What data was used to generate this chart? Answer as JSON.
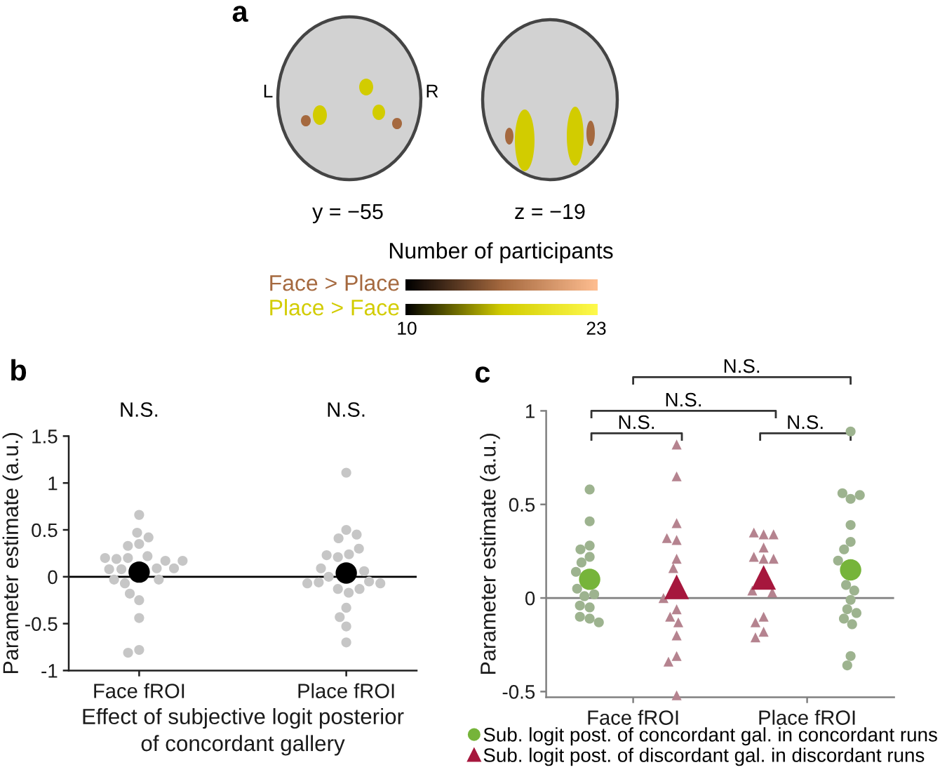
{
  "chart_data": [
    {
      "type": "other",
      "title": "a",
      "annotations": [
        "L",
        "R",
        "y = −55",
        "z = −19",
        "Number of participants",
        "10",
        "23"
      ],
      "categories": [
        "Face > Place",
        "Place > Face"
      ],
      "colors": [
        "#a5693f",
        "#d2cc00"
      ]
    },
    {
      "type": "scatter",
      "title": "b",
      "annotations": [
        "N.S.",
        "N.S."
      ],
      "xlabel": "Effect of subjective logit posterior\nof concordant gallery",
      "ylabel": "Parameter estimate (a.u.)",
      "categories": [
        "Face fROI",
        "Place fROI"
      ],
      "ylim": [
        -1,
        1.5
      ],
      "yticks": [
        -1,
        -0.5,
        0,
        0.5,
        1,
        1.5
      ],
      "marker": "circle",
      "ref_lines": [
        {
          "axis": "y",
          "value": 0,
          "color": "#000000"
        }
      ],
      "series": [
        {
          "color": "#c6c6c6",
          "x": [
            "Face fROI",
            "Face fROI",
            "Face fROI",
            "Face fROI",
            "Face fROI",
            "Face fROI",
            "Face fROI",
            "Face fROI",
            "Face fROI",
            "Face fROI",
            "Face fROI",
            "Face fROI",
            "Face fROI",
            "Face fROI",
            "Face fROI",
            "Face fROI",
            "Face fROI",
            "Face fROI",
            "Face fROI",
            "Face fROI",
            "Face fROI",
            "Face fROI",
            "Face fROI",
            "Place fROI",
            "Place fROI",
            "Place fROI",
            "Place fROI",
            "Place fROI",
            "Place fROI",
            "Place fROI",
            "Place fROI",
            "Place fROI",
            "Place fROI",
            "Place fROI",
            "Place fROI",
            "Place fROI",
            "Place fROI",
            "Place fROI",
            "Place fROI",
            "Place fROI",
            "Place fROI",
            "Place fROI",
            "Place fROI",
            "Place fROI",
            "Place fROI"
          ],
          "values": [
            0.08,
            0.09,
            0.35,
            0.66,
            -0.03,
            -0.25,
            -0.18,
            -0.78,
            0.2,
            0.19,
            0.47,
            0.17,
            -0.07,
            -0.81,
            0.33,
            0.42,
            -0.03,
            0.08,
            0.22,
            0.09,
            0.2,
            0.17,
            -0.44,
            1.11,
            0.5,
            0.21,
            -0.13,
            -0.33,
            0.0,
            -0.17,
            0.06,
            -0.53,
            -0.7,
            -0.05,
            0.41,
            0.45,
            -0.13,
            -0.43,
            0.24,
            -0.06,
            0.3,
            -0.07,
            -0.07,
            0.23,
            0.09
          ]
        },
        {
          "color": "#000000",
          "x": [
            "Face fROI",
            "Place fROI"
          ],
          "values": [
            0.05,
            0.04
          ]
        }
      ]
    },
    {
      "type": "scatter",
      "title": "c",
      "annotations": [
        "N.S.",
        "N.S.",
        "N.S.",
        "N.S."
      ],
      "ylabel": "Parameter estimate (a.u.)",
      "categories": [
        "Face fROI",
        "Place fROI"
      ],
      "ylim": [
        -0.53,
        1
      ],
      "yticks": [
        -0.5,
        0,
        0.5,
        1
      ],
      "legend": "bottom",
      "ref_lines": [
        {
          "axis": "y",
          "value": 0,
          "color": "#808080"
        }
      ],
      "series": [
        {
          "color": "#9db38f",
          "marker": "circle",
          "x": [
            "Face fROI",
            "Face fROI",
            "Face fROI",
            "Face fROI",
            "Face fROI",
            "Face fROI",
            "Face fROI",
            "Face fROI",
            "Face fROI",
            "Face fROI",
            "Face fROI",
            "Face fROI",
            "Face fROI",
            "Face fROI",
            "Face fROI",
            "Place fROI",
            "Place fROI",
            "Place fROI",
            "Place fROI",
            "Place fROI",
            "Place fROI",
            "Place fROI",
            "Place fROI",
            "Place fROI",
            "Place fROI",
            "Place fROI",
            "Place fROI",
            "Place fROI",
            "Place fROI",
            "Place fROI",
            "Place fROI",
            "Place fROI"
          ],
          "values": [
            0.58,
            0.41,
            0.28,
            0.26,
            0.22,
            0.19,
            0.14,
            0.05,
            0.02,
            0.01,
            -0.05,
            -0.04,
            -0.11,
            -0.1,
            -0.13,
            0.89,
            0.53,
            0.56,
            0.55,
            0.39,
            0.3,
            0.26,
            0.2,
            0.07,
            0.04,
            -0.01,
            -0.06,
            -0.08,
            -0.11,
            -0.14,
            -0.31,
            -0.36
          ]
        },
        {
          "color": "#b5838f",
          "marker": "triangle",
          "x": [
            "Face fROI",
            "Face fROI",
            "Face fROI",
            "Face fROI",
            "Face fROI",
            "Face fROI",
            "Face fROI",
            "Face fROI",
            "Face fROI",
            "Face fROI",
            "Face fROI",
            "Face fROI",
            "Face fROI",
            "Face fROI",
            "Face fROI",
            "Place fROI",
            "Place fROI",
            "Place fROI",
            "Place fROI",
            "Place fROI",
            "Place fROI",
            "Place fROI",
            "Place fROI",
            "Place fROI",
            "Place fROI",
            "Place fROI",
            "Place fROI",
            "Place fROI"
          ],
          "values": [
            0.82,
            0.65,
            0.4,
            0.31,
            0.32,
            0.21,
            0.16,
            0.0,
            -0.06,
            -0.1,
            -0.13,
            -0.2,
            -0.31,
            -0.34,
            -0.52,
            0.34,
            0.35,
            0.34,
            0.27,
            0.21,
            0.22,
            0.21,
            0.04,
            0.03,
            -0.1,
            -0.13,
            -0.18,
            -0.21
          ]
        },
        {
          "name": "Sub. logit post. of concordant gal. in concordant runs",
          "color": "#76b43a",
          "marker": "circle",
          "x": [
            "Face fROI",
            "Place fROI"
          ],
          "values": [
            0.1,
            0.15
          ]
        },
        {
          "name": "Sub. logit post. of discordant gal. in discordant runs",
          "color": "#a6173d",
          "marker": "triangle",
          "x": [
            "Face fROI",
            "Place fROI"
          ],
          "values": [
            0.06,
            0.11
          ]
        }
      ]
    }
  ]
}
